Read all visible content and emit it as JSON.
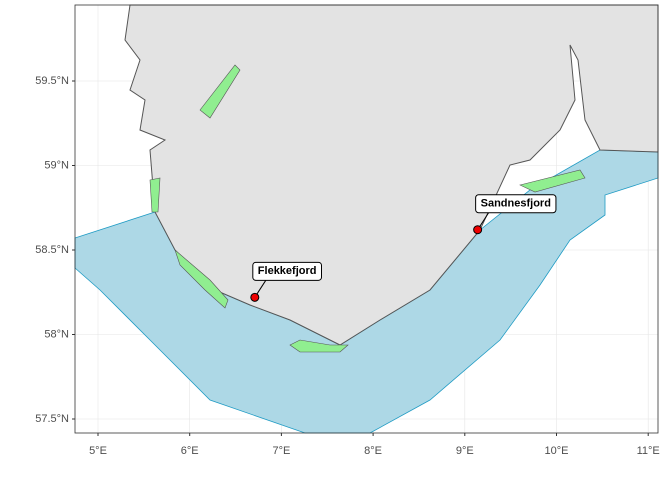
{
  "map": {
    "lat_ticks": [
      {
        "value": 59.5,
        "label": "59.5°N"
      },
      {
        "value": 59,
        "label": "59°N"
      },
      {
        "value": 58.5,
        "label": "58.5°N"
      },
      {
        "value": 58,
        "label": "58°N"
      },
      {
        "value": 57.5,
        "label": "57.5°N"
      }
    ],
    "lon_ticks": [
      {
        "value": 5,
        "label": "5°E"
      },
      {
        "value": 6,
        "label": "6°E"
      },
      {
        "value": 7,
        "label": "7°E"
      },
      {
        "value": 8,
        "label": "8°E"
      },
      {
        "value": 9,
        "label": "9°E"
      },
      {
        "value": 10,
        "label": "10°E"
      },
      {
        "value": 11,
        "label": "11°E"
      }
    ],
    "places": [
      {
        "name": "Flekkefjord",
        "lon": 6.71,
        "lat": 58.22
      },
      {
        "name": "Sandnesfjord",
        "lon": 9.14,
        "lat": 58.62
      }
    ]
  }
}
